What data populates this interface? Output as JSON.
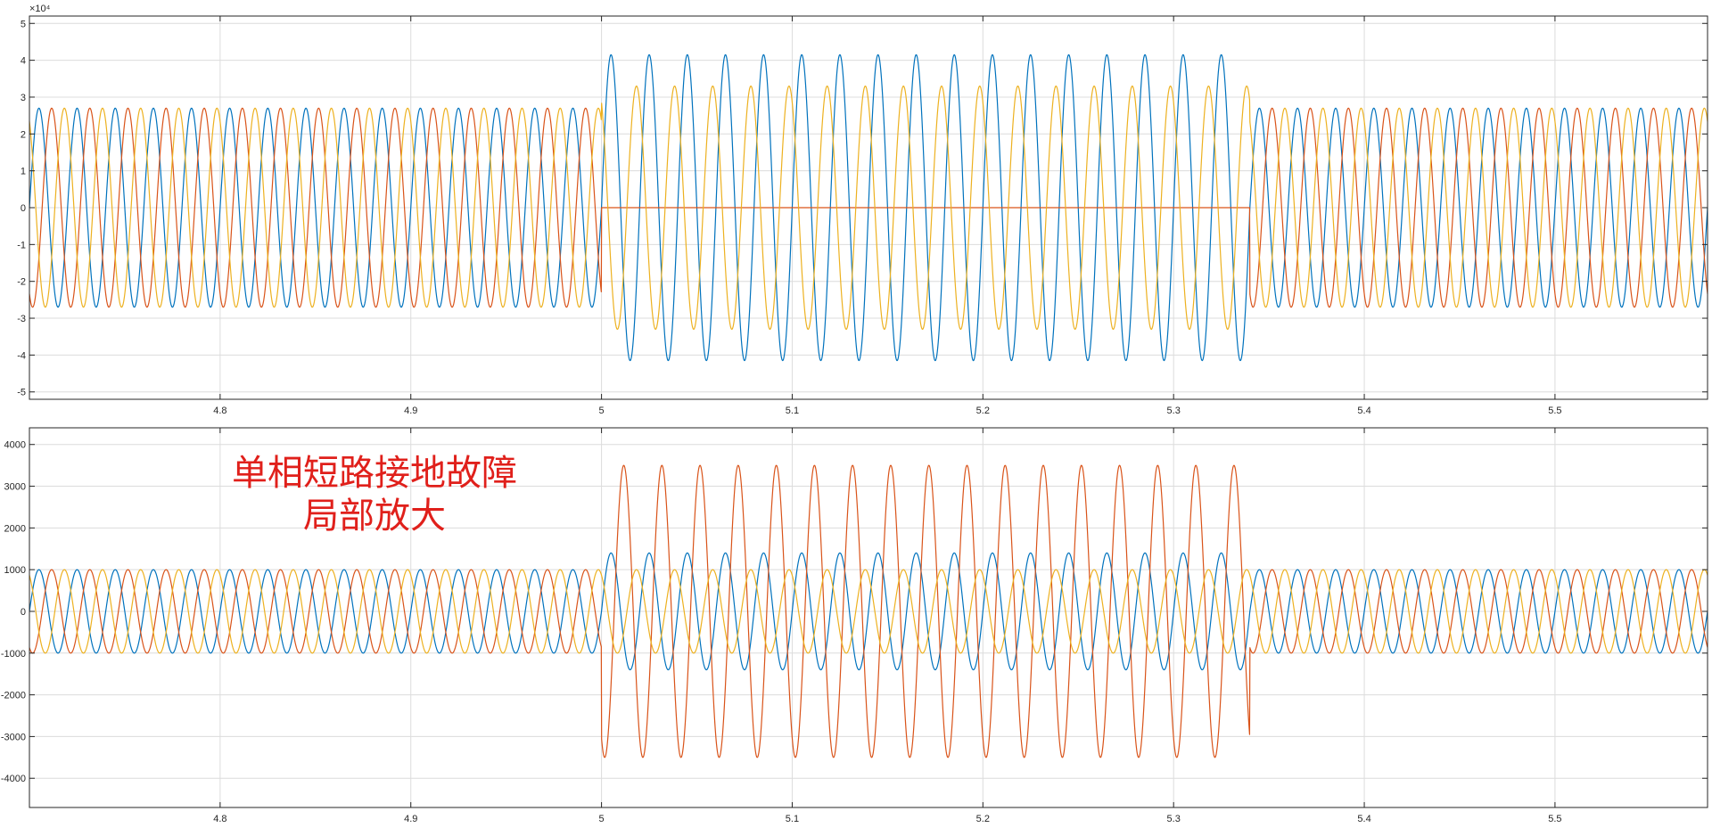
{
  "colors": {
    "phase_a": "#0072BD",
    "phase_b": "#D95319",
    "phase_c": "#EDB120",
    "axes": "#262626",
    "grid": "#dcdcdc",
    "annotation": "#e0201b",
    "background": "#ffffff"
  },
  "chart_data": [
    {
      "type": "line",
      "title": "",
      "xlabel": "",
      "ylabel": "",
      "y_exponent_label": "×10⁴",
      "xlim": [
        4.7,
        5.58
      ],
      "ylim": [
        -5.2,
        5.2
      ],
      "x_ticks": [
        4.8,
        4.9,
        5.0,
        5.1,
        5.2,
        5.3,
        5.4,
        5.5
      ],
      "x_tick_labels": [
        "4.8",
        "4.9",
        "5",
        "5.1",
        "5.2",
        "5.3",
        "5.4",
        "5.5"
      ],
      "y_ticks": [
        5,
        4,
        3,
        2,
        1,
        0,
        -1,
        -2,
        -3,
        -4,
        -5
      ],
      "y_tick_labels": [
        "5",
        "4",
        "3",
        "2",
        "1",
        "0",
        "-1",
        "-2",
        "-3",
        "-4",
        "-5"
      ],
      "grid": true,
      "frequency_hz": 50,
      "fault_interval": [
        5.0,
        5.34
      ],
      "series": [
        {
          "color_key": "phase_a",
          "phase_deg": 0,
          "amplitude_normal": 2.7,
          "amplitude_fault": 4.15
        },
        {
          "color_key": "phase_b",
          "phase_deg": -120,
          "amplitude_normal": 2.7,
          "amplitude_fault": 0
        },
        {
          "color_key": "phase_c",
          "phase_deg": 120,
          "amplitude_normal": 2.7,
          "amplitude_fault": 3.3
        }
      ]
    },
    {
      "type": "line",
      "title": "",
      "xlabel": "",
      "ylabel": "",
      "xlim": [
        4.7,
        5.58
      ],
      "ylim": [
        -4700,
        4400
      ],
      "x_ticks": [
        4.8,
        4.9,
        5.0,
        5.1,
        5.2,
        5.3,
        5.4,
        5.5
      ],
      "x_tick_labels": [
        "4.8",
        "4.9",
        "5",
        "5.1",
        "5.2",
        "5.3",
        "5.4",
        "5.5"
      ],
      "y_ticks": [
        4000,
        3000,
        2000,
        1000,
        0,
        -1000,
        -2000,
        -3000,
        -4000
      ],
      "y_tick_labels": [
        "4000",
        "3000",
        "2000",
        "1000",
        "0",
        "-1000",
        "-2000",
        "-3000",
        "-4000"
      ],
      "grid": true,
      "frequency_hz": 50,
      "fault_interval": [
        5.0,
        5.34
      ],
      "annotation": [
        "单相短路接地故障",
        "局部放大"
      ],
      "series": [
        {
          "color_key": "phase_a",
          "phase_deg": 0,
          "amplitude_normal": 1000,
          "amplitude_fault": 1400
        },
        {
          "color_key": "phase_b",
          "phase_deg": -120,
          "amplitude_normal": 1000,
          "amplitude_fault": 3500
        },
        {
          "color_key": "phase_c",
          "phase_deg": 120,
          "amplitude_normal": 1000,
          "amplitude_fault": 1000
        }
      ]
    }
  ]
}
